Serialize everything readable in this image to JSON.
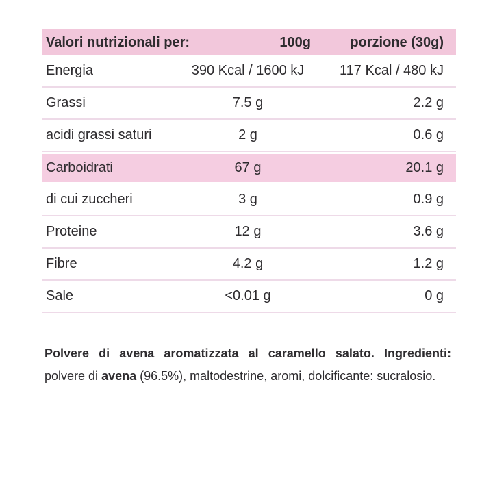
{
  "colors": {
    "header_bg": "#f2c7db",
    "highlight_bg": "#f5cde1",
    "divider": "#eedae8",
    "text": "#2e2c2f",
    "page_bg": "#ffffff"
  },
  "table": {
    "header": {
      "label": "Valori nutrizionali per:",
      "col_100g": "100g",
      "col_portion": "porzione (30g)"
    },
    "rows": [
      {
        "label": "Energia",
        "per_100g": "390 Kcal / 1600 kJ",
        "per_portion": "117 Kcal / 480 kJ",
        "highlight": false
      },
      {
        "label": "Grassi",
        "per_100g": "7.5 g",
        "per_portion": "2.2 g",
        "highlight": false
      },
      {
        "label": "acidi grassi saturi",
        "per_100g": "2 g",
        "per_portion": "0.6 g",
        "highlight": false
      },
      {
        "label": "Carboidrati",
        "per_100g": "67 g",
        "per_portion": "20.1 g",
        "highlight": true
      },
      {
        "label": "di cui zuccheri",
        "per_100g": "3 g",
        "per_portion": "0.9 g",
        "highlight": false
      },
      {
        "label": "Proteine",
        "per_100g": "12 g",
        "per_portion": "3.6 g",
        "highlight": false
      },
      {
        "label": "Fibre",
        "per_100g": "4.2 g",
        "per_portion": "1.2 g",
        "highlight": false
      },
      {
        "label": "Sale",
        "per_100g": "<0.01 g",
        "per_portion": "0 g",
        "highlight": false
      }
    ]
  },
  "ingredients": {
    "seg_bold_1": "Polvere di avena aromatizzata al caramello salato. Ingredienti:",
    "seg_regular_1": " polvere di ",
    "seg_bold_2": "avena",
    "seg_regular_2": " (96.5%), maltodestrine, aromi, dolcificante: sucralosio."
  }
}
